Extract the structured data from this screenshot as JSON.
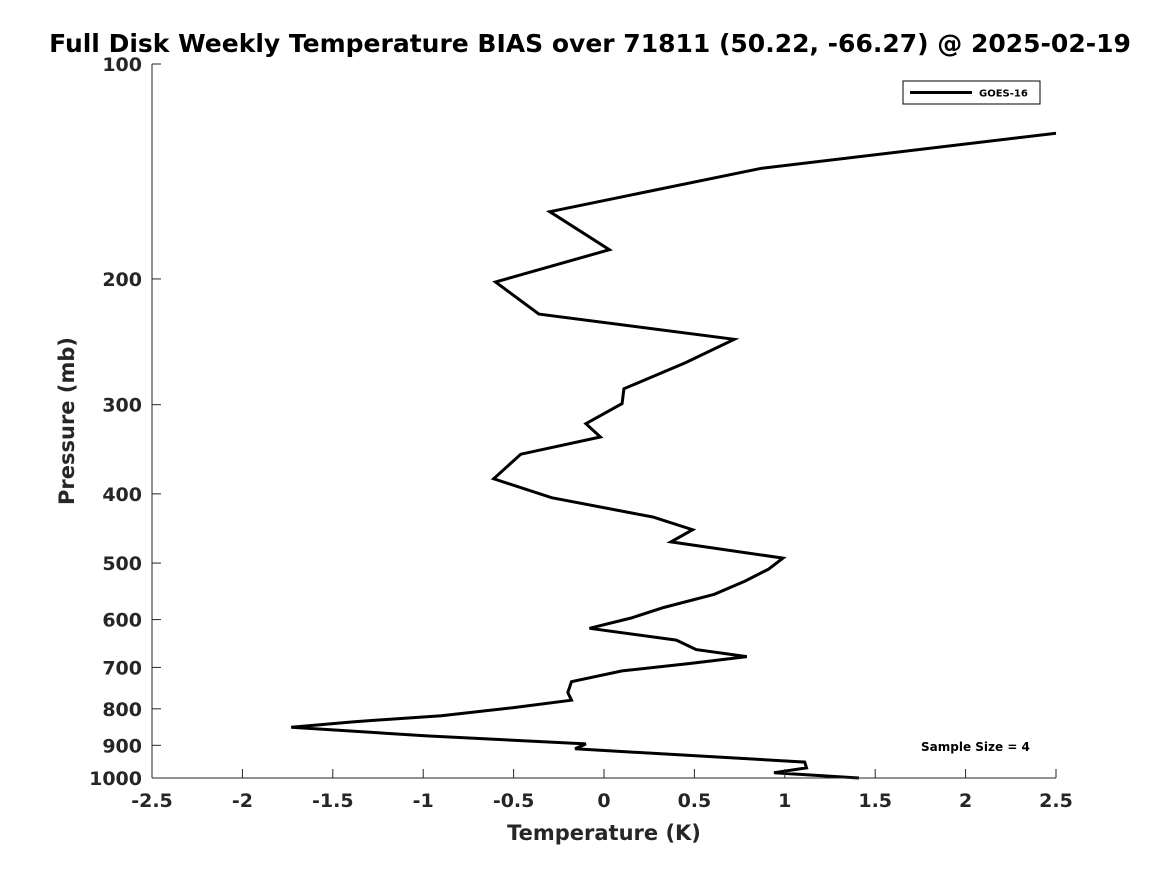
{
  "chart_data": {
    "type": "line",
    "title": "Full Disk Weekly Temperature BIAS over 71811 (50.22, -66.27) @ 2025-02-19",
    "xlabel": "Temperature (K)",
    "ylabel": "Pressure (mb)",
    "xlim": [
      -2.5,
      2.5
    ],
    "ylim": [
      100,
      1000
    ],
    "y_scale": "log",
    "y_reversed": true,
    "x_ticks": [
      "-2.5",
      "-2",
      "-1.5",
      "-1",
      "-0.5",
      "0",
      "0.5",
      "1",
      "1.5",
      "2",
      "2.5"
    ],
    "y_ticks": [
      "100",
      "200",
      "300",
      "400",
      "500",
      "600",
      "700",
      "800",
      "900",
      "1000"
    ],
    "grid": false,
    "legend_position": "top-right",
    "annotation": "Sample Size = 4",
    "series": [
      {
        "name": "GOES-16",
        "color": "#000000",
        "x": [
          2.5,
          0.87,
          -0.3,
          0.03,
          -0.6,
          -0.36,
          0.72,
          0.45,
          0.11,
          0.1,
          -0.1,
          -0.02,
          -0.46,
          -0.61,
          -0.29,
          0.27,
          0.49,
          0.37,
          0.99,
          0.91,
          0.78,
          0.61,
          0.33,
          0.15,
          -0.08,
          0.4,
          0.51,
          0.79,
          0.48,
          0.1,
          -0.18,
          -0.2,
          -0.18,
          -0.5,
          -0.9,
          -1.38,
          -1.73,
          -0.98,
          -0.1,
          -0.16,
          1.11,
          1.12,
          0.94,
          1.41
        ],
        "y": [
          125,
          140,
          161,
          182,
          202,
          224,
          243,
          262,
          285,
          299,
          319,
          333,
          352,
          381,
          405,
          431,
          449,
          467,
          492,
          510,
          530,
          553,
          577,
          597,
          617,
          641,
          661,
          676,
          691,
          708,
          733,
          759,
          778,
          797,
          818,
          834,
          849,
          873,
          896,
          910,
          950,
          968,
          983,
          1000
        ]
      }
    ]
  }
}
